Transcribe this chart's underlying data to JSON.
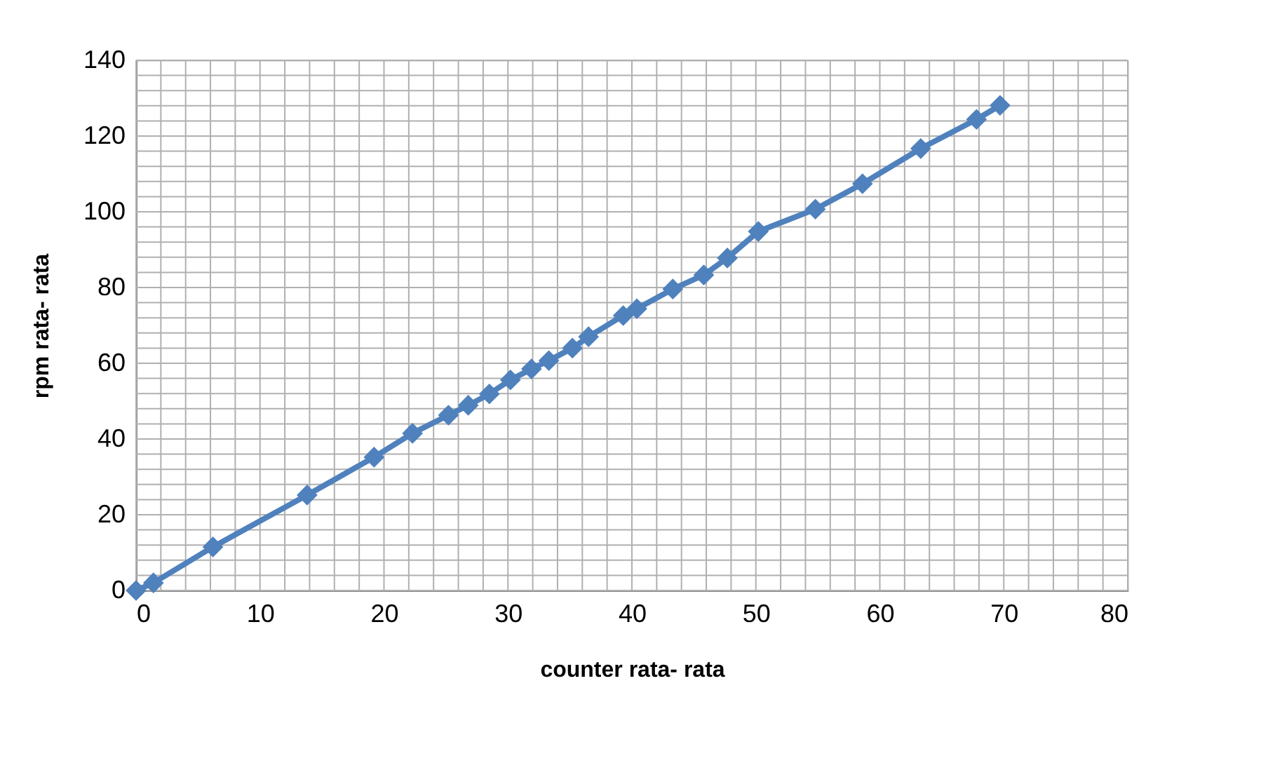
{
  "chart_data": {
    "type": "line",
    "xlabel": "counter rata- rata",
    "ylabel": "rpm rata- rata",
    "x": [
      0,
      1.4,
      6.2,
      13.8,
      19.2,
      22.3,
      25.2,
      26.8,
      28.5,
      30.2,
      31.9,
      33.3,
      35.2,
      36.5,
      39.3,
      40.4,
      43.3,
      45.8,
      47.7,
      50.2,
      54.8,
      58.6,
      63.3,
      67.8,
      69.7
    ],
    "series": [
      {
        "color": "#4f81bd",
        "values": [
          0,
          2,
          11.5,
          25.2,
          35.2,
          41.5,
          46.3,
          48.9,
          51.9,
          55.6,
          58.5,
          60.7,
          64,
          67,
          72.6,
          74.4,
          79.6,
          83.3,
          87.8,
          94.8,
          100.7,
          107.4,
          116.7,
          124.4,
          128.1
        ]
      }
    ],
    "xlim": [
      0,
      80
    ],
    "xticks": [
      0,
      {
        "value": 2,
        "label": null
      },
      {
        "value": 4,
        "label": null
      },
      {
        "value": 6,
        "label": null
      },
      {
        "value": 8,
        "label": null
      },
      10,
      {
        "value": 12,
        "label": null
      },
      {
        "value": 14,
        "label": null
      },
      {
        "value": 16,
        "label": null
      },
      {
        "value": 18,
        "label": null
      },
      20,
      {
        "value": 22,
        "label": null
      },
      {
        "value": 24,
        "label": null
      },
      {
        "value": 26,
        "label": null
      },
      {
        "value": 28,
        "label": null
      },
      30,
      {
        "value": 32,
        "label": null
      },
      {
        "value": 34,
        "label": null
      },
      {
        "value": 36,
        "label": null
      },
      {
        "value": 38,
        "label": null
      },
      40,
      {
        "value": 42,
        "label": null
      },
      {
        "value": 44,
        "label": null
      },
      {
        "value": 46,
        "label": null
      },
      {
        "value": 48,
        "label": null
      },
      50,
      {
        "value": 52,
        "label": null
      },
      {
        "value": 54,
        "label": null
      },
      {
        "value": 56,
        "label": null
      },
      {
        "value": 58,
        "label": null
      },
      60,
      {
        "value": 62,
        "label": null
      },
      {
        "value": 64,
        "label": null
      },
      {
        "value": 66,
        "label": null
      },
      {
        "value": 68,
        "label": null
      },
      70,
      {
        "value": 72,
        "label": null
      },
      {
        "value": 74,
        "label": null
      },
      {
        "value": 76,
        "label": null
      },
      {
        "value": 78,
        "label": null
      },
      80
    ],
    "ylim": [
      0,
      140
    ],
    "yticks": [
      0,
      {
        "value": 4,
        "label": null
      },
      {
        "value": 8,
        "label": null
      },
      {
        "value": 12,
        "label": null
      },
      {
        "value": 16,
        "label": null
      },
      20,
      {
        "value": 24,
        "label": null
      },
      {
        "value": 28,
        "label": null
      },
      {
        "value": 32,
        "label": null
      },
      {
        "value": 36,
        "label": null
      },
      40,
      {
        "value": 44,
        "label": null
      },
      {
        "value": 48,
        "label": null
      },
      {
        "value": 52,
        "label": null
      },
      {
        "value": 56,
        "label": null
      },
      60,
      {
        "value": 64,
        "label": null
      },
      {
        "value": 68,
        "label": null
      },
      {
        "value": 72,
        "label": null
      },
      {
        "value": 76,
        "label": null
      },
      80,
      {
        "value": 84,
        "label": null
      },
      {
        "value": 88,
        "label": null
      },
      {
        "value": 92,
        "label": null
      },
      {
        "value": 96,
        "label": null
      },
      100,
      {
        "value": 104,
        "label": null
      },
      {
        "value": 108,
        "label": null
      },
      {
        "value": 112,
        "label": null
      },
      {
        "value": 116,
        "label": null
      },
      120,
      {
        "value": 124,
        "label": null
      },
      {
        "value": 128,
        "label": null
      },
      {
        "value": 132,
        "label": null
      },
      {
        "value": 136,
        "label": null
      },
      140
    ],
    "grid": true,
    "marker": "diamond",
    "line_style": "solid"
  }
}
